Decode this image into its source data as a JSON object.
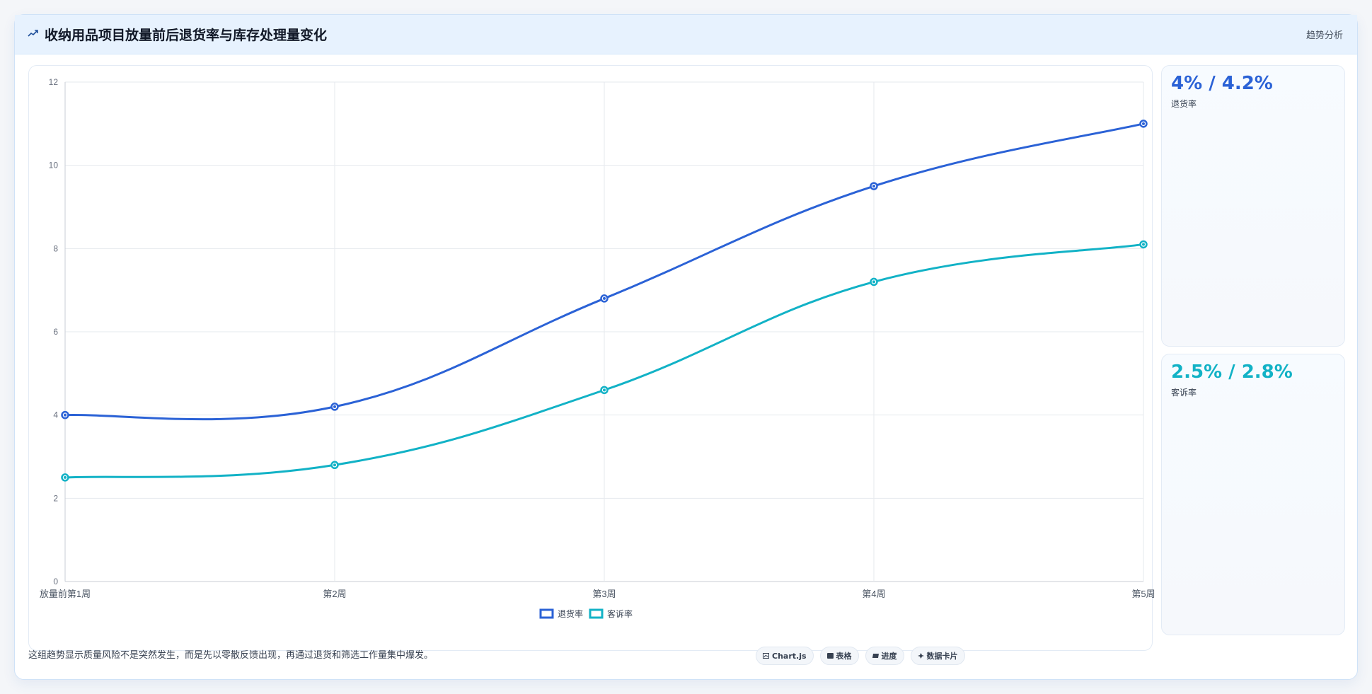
{
  "header": {
    "title": "收纳用品项目放量前后退货率与库存处理量变化",
    "tag": "趋势分析",
    "icon": "trend-line-icon"
  },
  "kpis": [
    {
      "value": "4% / 4.2%",
      "label": "退货率",
      "color": "#2b62d6"
    },
    {
      "value": "2.5% / 2.8%",
      "label": "客诉率",
      "color": "#12b2c6"
    }
  ],
  "footer": {
    "note": "这组趋势显示质量风险不是突然发生，而是先以零散反馈出现，再通过退货和筛选工作量集中爆发。",
    "chips": [
      {
        "icon": "chart-icon",
        "label": "Chart.js"
      },
      {
        "icon": "table-icon",
        "label": "表格"
      },
      {
        "icon": "progress-icon",
        "label": "进度"
      },
      {
        "icon": "card-icon",
        "label": "数据卡片"
      }
    ]
  },
  "chart_data": {
    "type": "line",
    "categories": [
      "放量前第1周",
      "第2周",
      "第3周",
      "第4周",
      "第5周"
    ],
    "series": [
      {
        "name": "退货率",
        "values": [
          4.0,
          4.2,
          6.8,
          9.5,
          11.0
        ],
        "color": "#2b62d6"
      },
      {
        "name": "客诉率",
        "values": [
          2.5,
          2.8,
          4.6,
          7.2,
          8.1
        ],
        "color": "#12b2c6"
      }
    ],
    "ylim": [
      0,
      12
    ],
    "yticks": [
      0,
      2,
      4,
      6,
      8,
      10,
      12
    ],
    "grid": true,
    "legend": "bottom-center",
    "title": "",
    "xlabel": "",
    "ylabel": ""
  }
}
